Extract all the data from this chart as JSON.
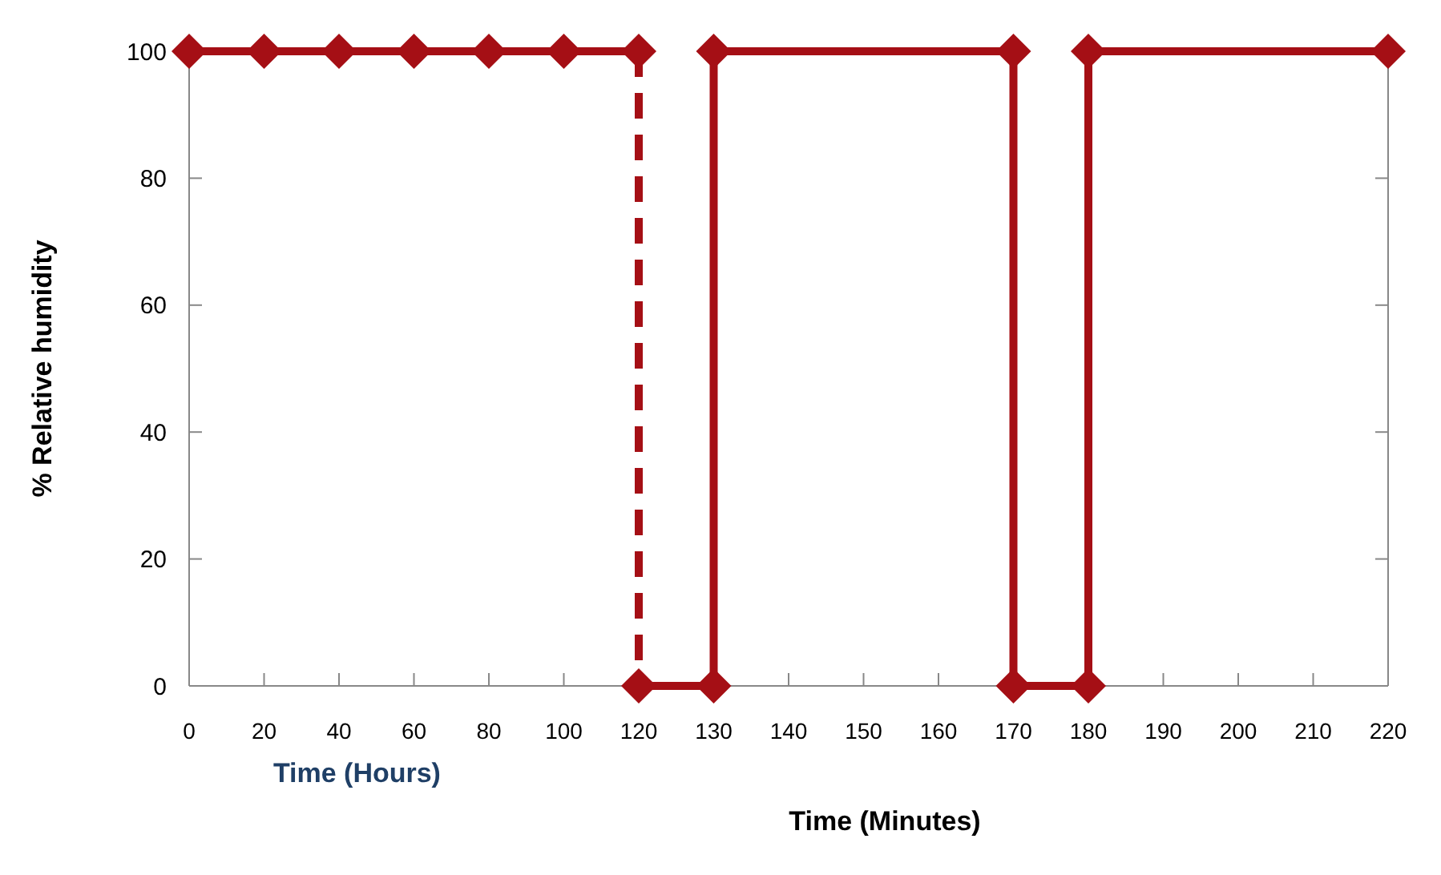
{
  "chart_data": {
    "type": "line",
    "ylabel": "% Relative humidity",
    "xlabel": "Time (Minutes)",
    "categories": [
      "0",
      "20",
      "40",
      "60",
      "80",
      "100",
      "120",
      "130",
      "140",
      "150",
      "160",
      "170",
      "180",
      "190",
      "200",
      "210",
      "220"
    ],
    "ylim": [
      0,
      100
    ],
    "yticks": [
      0,
      20,
      40,
      60,
      80,
      100
    ],
    "grid": false,
    "series": [
      {
        "color": "#a50f15",
        "x": [
          "0",
          "20",
          "40",
          "60",
          "80",
          "100",
          "120"
        ],
        "values": [
          100,
          100,
          100,
          100,
          100,
          100,
          100
        ],
        "marker": "diamond",
        "line_style": "solid"
      },
      {
        "color": "#a50f15",
        "x": [
          "120",
          "120"
        ],
        "values": [
          100,
          0
        ],
        "line_style": "dashed"
      },
      {
        "color": "#a50f15",
        "x": [
          "120",
          "130",
          "130",
          "170",
          "170",
          "180",
          "180",
          "220"
        ],
        "values": [
          0,
          0,
          100,
          100,
          0,
          0,
          100,
          100
        ],
        "marker": "diamond",
        "line_style": "solid"
      }
    ],
    "annotations": [
      "Time (Hours)"
    ]
  }
}
